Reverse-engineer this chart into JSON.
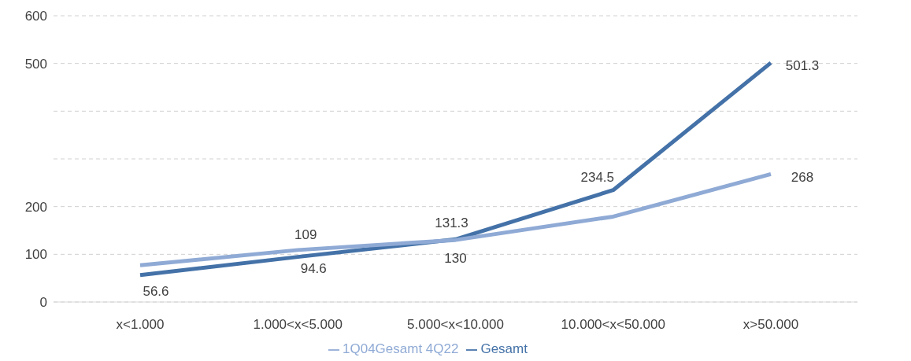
{
  "chart_data": {
    "type": "line",
    "categories": [
      "x<1.000",
      "1.000<x<5.000",
      "5.000<x<10.000",
      "10.000<x<50.000",
      "x>50.000"
    ],
    "series": [
      {
        "name": "Gesamt",
        "color": "#4472a8",
        "values": [
          56.6,
          94.6,
          131.3,
          234.5,
          501.3
        ],
        "value_labels": [
          "56.6",
          "94.6",
          "131.3",
          "234.5",
          "501.3"
        ]
      },
      {
        "name": "1Q04Gesamt 4Q22",
        "color": "#8faad5",
        "values": [
          77,
          109,
          130,
          179,
          268
        ],
        "value_labels": [
          null,
          "109",
          "130",
          null,
          "268"
        ]
      }
    ],
    "ylim": [
      0,
      600
    ],
    "yticks": [
      0,
      100,
      200,
      {
        "value": 300,
        "label": null
      },
      {
        "value": 400,
        "label": null
      },
      500,
      600
    ],
    "grid": "y",
    "legend": "bottom",
    "marker": "none",
    "line_style": "solid"
  }
}
